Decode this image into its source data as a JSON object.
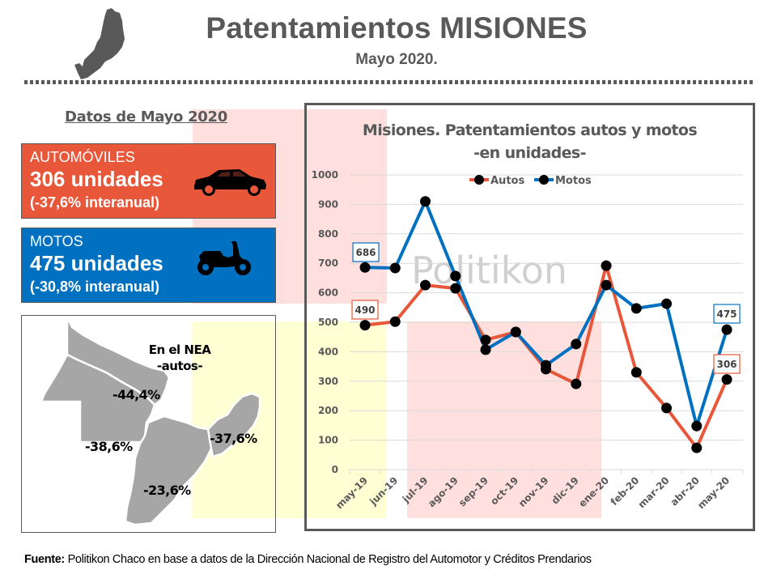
{
  "header": {
    "title": "Patentamientos MISIONES",
    "subtitle": "Mayo 2020.",
    "map_icon": "misiones-province-silhouette-icon"
  },
  "datos": {
    "title": "Datos de Mayo 2020",
    "autos": {
      "label": "AUTOMÓVILES",
      "value": "306 unidades",
      "change": "(-37,6% interanual)",
      "icon": "car-icon",
      "color": "#e9573a"
    },
    "motos": {
      "label": "MOTOS",
      "value": "475 unidades",
      "change": "(-30,8% interanual)",
      "icon": "scooter-icon",
      "color": "#0070c0"
    }
  },
  "nea": {
    "title": "En el NEA",
    "subtitle": "-autos-",
    "regions": [
      {
        "name": "Formosa",
        "pct": "-44,4%"
      },
      {
        "name": "Chaco",
        "pct": "-38,6%"
      },
      {
        "name": "Misiones",
        "pct": "-37,6%"
      },
      {
        "name": "Corrientes",
        "pct": "-23,6%"
      }
    ]
  },
  "chart": {
    "title_line1": "Misiones. Patentamientos autos y motos",
    "title_line2": "-en unidades-",
    "watermark": "Politikon"
  },
  "chart_data": {
    "type": "line",
    "title": "Misiones. Patentamientos autos y motos -en unidades-",
    "xlabel": "",
    "ylabel": "",
    "ylim": [
      0,
      1000
    ],
    "yticks": [
      0,
      100,
      200,
      300,
      400,
      500,
      600,
      700,
      800,
      900,
      1000
    ],
    "grid": true,
    "legend_position": "top",
    "categories": [
      "may-19",
      "jun-19",
      "jul-19",
      "ago-19",
      "sep-19",
      "oct-19",
      "nov-19",
      "dic-19",
      "ene-20",
      "feb-20",
      "mar-20",
      "abr-20",
      "may-20"
    ],
    "series": [
      {
        "name": "Autos",
        "color": "#e9573a",
        "values": [
          490,
          502,
          626,
          615,
          440,
          467,
          341,
          291,
          692,
          330,
          209,
          74,
          306
        ]
      },
      {
        "name": "Motos",
        "color": "#0070c0",
        "values": [
          686,
          684,
          910,
          657,
          407,
          467,
          354,
          426,
          626,
          547,
          563,
          148,
          475
        ]
      }
    ],
    "annotations": [
      {
        "series": "Motos",
        "category": "may-19",
        "label": "686"
      },
      {
        "series": "Autos",
        "category": "may-19",
        "label": "490"
      },
      {
        "series": "Motos",
        "category": "may-20",
        "label": "475"
      },
      {
        "series": "Autos",
        "category": "may-20",
        "label": "306"
      }
    ]
  },
  "source": {
    "label": "Fuente:",
    "text": " Politikon Chaco en base a datos de la Dirección Nacional de Registro del Automotor y Créditos Prendarios"
  }
}
